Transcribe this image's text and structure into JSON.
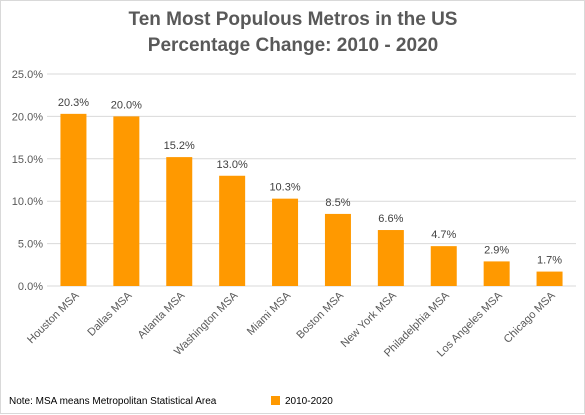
{
  "chart_data": {
    "type": "bar",
    "title": [
      "Ten Most Populous Metros in the US",
      "Percentage Change: 2010 - 2020"
    ],
    "categories": [
      "Houston MSA",
      "Dallas MSA",
      "Atlanta MSA",
      "Washington MSA",
      "Miami MSA",
      "Boston MSA",
      "New York MSA",
      "Philadelphia MSA",
      "Los Angeles MSA",
      "Chicago MSA"
    ],
    "series": [
      {
        "name": "2010-2020",
        "values": [
          20.3,
          20.0,
          15.2,
          13.0,
          10.3,
          8.5,
          6.6,
          4.7,
          2.9,
          1.7
        ],
        "color": "#ff9900"
      }
    ],
    "data_labels": [
      "20.3%",
      "20.0%",
      "15.2%",
      "13.0%",
      "10.3%",
      "8.5%",
      "6.6%",
      "4.7%",
      "2.9%",
      "1.7%"
    ],
    "yticks": [
      0,
      5,
      10,
      15,
      20,
      25
    ],
    "ytick_labels": [
      "0.0%",
      "5.0%",
      "10.0%",
      "15.0%",
      "20.0%",
      "25.0%"
    ],
    "ylim": [
      0,
      25
    ],
    "xlabel": "",
    "ylabel": "",
    "grid": true,
    "legend_position": "bottom",
    "note": "Note: MSA means Metropolitan Statistical Area"
  }
}
